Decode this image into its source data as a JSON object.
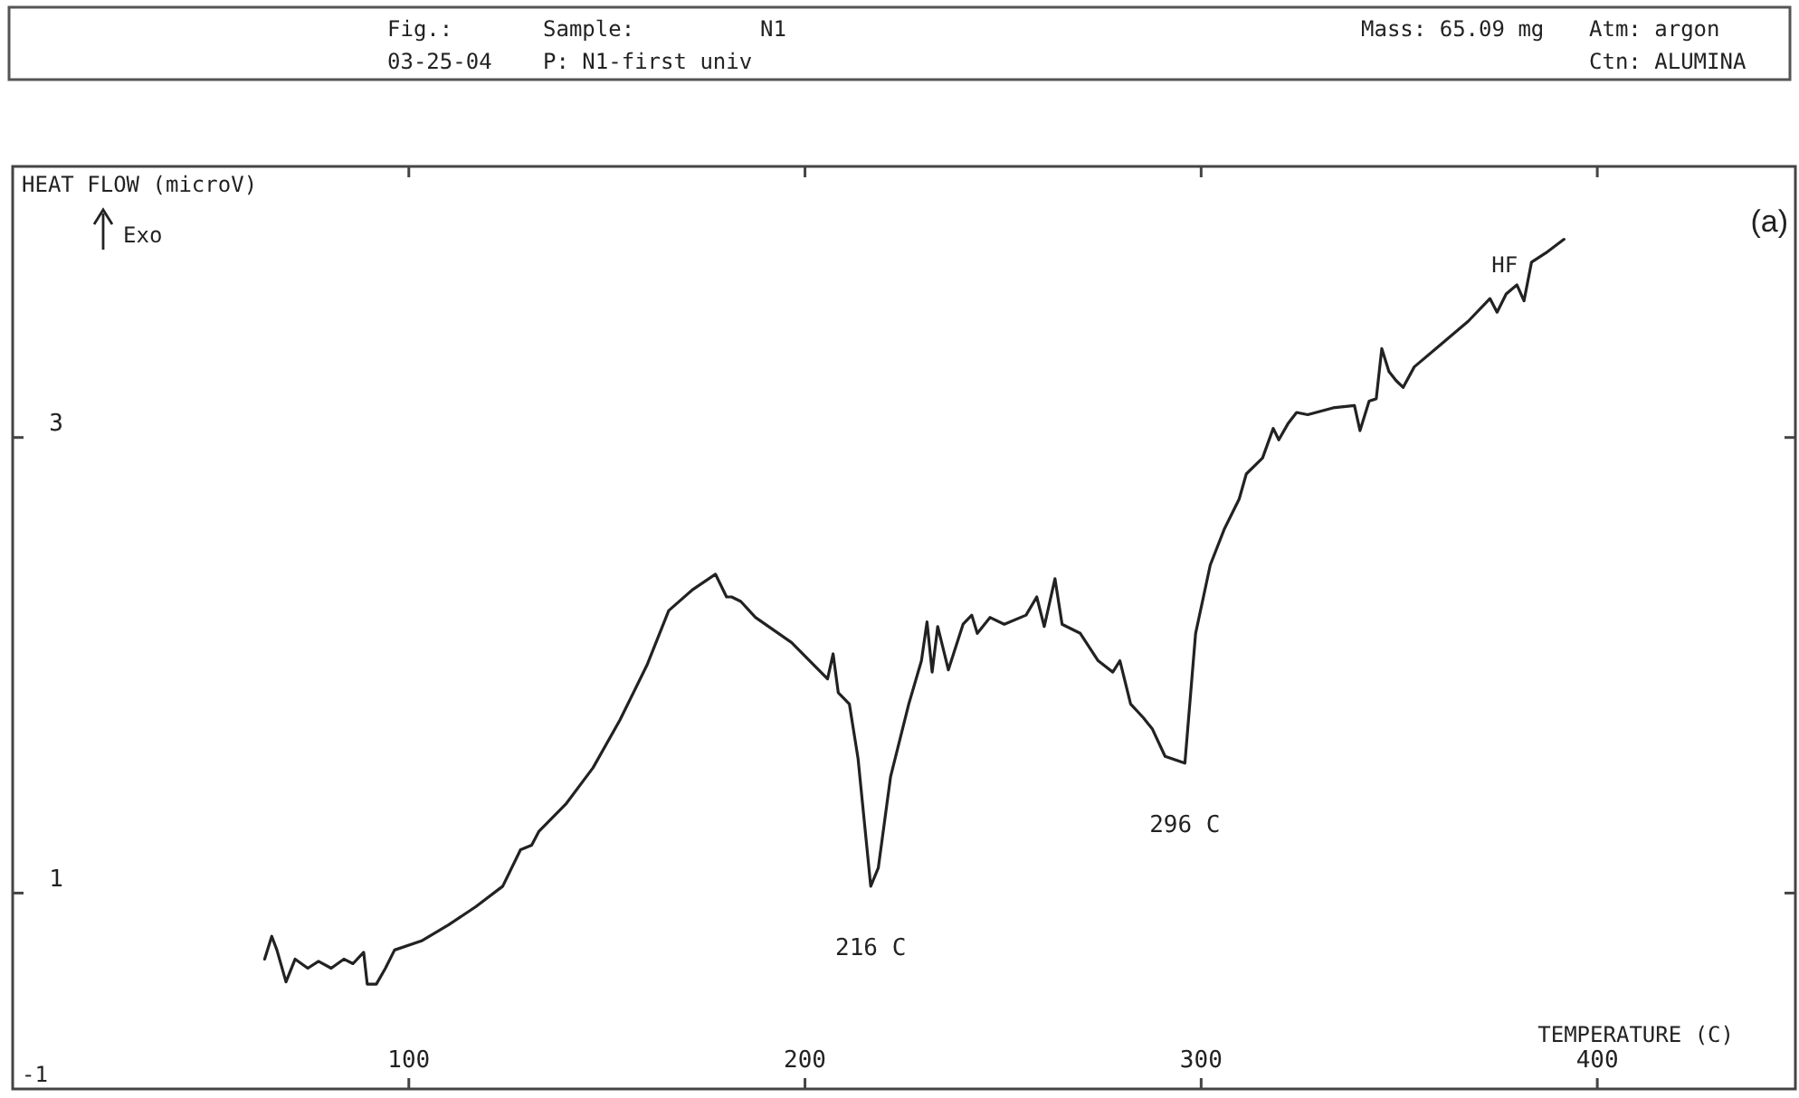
{
  "chart_data": {
    "type": "line",
    "ylabel": "HEAT FLOW (microV)",
    "xlabel": "TEMPERATURE (C)",
    "xlim": [
      0,
      450
    ],
    "xticks": [
      100,
      200,
      300,
      400
    ],
    "ylim": [
      0.14,
      4.19
    ],
    "yticks": [
      1,
      3
    ],
    "grid": false,
    "legend": false,
    "marker": "none",
    "line_style": "solid",
    "annotations": [
      "Fig.:",
      "03-25-04",
      "Sample:",
      "N1",
      "P: N1-first univ",
      "Mass: 65.09 mg",
      "Atm: argon",
      "Ctn: ALUMINA",
      "Exo",
      "(a)",
      "-1",
      {
        "text": "216 C",
        "x": 216.6,
        "y": 1.03
      },
      {
        "text": "296 C",
        "x": 295.9,
        "y": 1.57
      }
    ],
    "series": [
      {
        "name": "HF",
        "color": "#222222",
        "x": [
          63.6,
          65.4,
          66.7,
          69.0,
          71.3,
          74.5,
          77.2,
          80.4,
          83.6,
          85.9,
          88.6,
          89.5,
          91.8,
          94.1,
          96.4,
          103.2,
          110.0,
          116.9,
          123.7,
          128.2,
          131.0,
          132.8,
          139.6,
          146.5,
          153.3,
          160.1,
          165.6,
          171.5,
          177.4,
          180.2,
          181.5,
          183.8,
          187.5,
          196.6,
          205.7,
          207.1,
          208.4,
          211.2,
          213.4,
          216.6,
          218.5,
          221.6,
          226.2,
          229.4,
          230.8,
          232.1,
          233.5,
          236.2,
          239.9,
          242.1,
          243.5,
          246.7,
          250.3,
          255.8,
          258.5,
          260.4,
          263.1,
          264.9,
          269.5,
          274.0,
          277.7,
          279.5,
          282.2,
          285.4,
          287.7,
          290.9,
          295.9,
          298.6,
          302.3,
          305.9,
          309.6,
          311.4,
          315.5,
          318.2,
          319.6,
          321.9,
          324.1,
          326.9,
          333.3,
          338.7,
          340.1,
          342.4,
          344.2,
          345.6,
          347.4,
          349.2,
          351.0,
          353.8,
          360.6,
          367.4,
          372.9,
          374.7,
          377.0,
          379.7,
          381.5,
          383.4,
          387.0,
          391.6
        ],
        "values": [
          0.71,
          0.81,
          0.75,
          0.61,
          0.71,
          0.67,
          0.7,
          0.67,
          0.71,
          0.69,
          0.74,
          0.6,
          0.6,
          0.67,
          0.75,
          0.79,
          0.86,
          0.94,
          1.03,
          1.19,
          1.21,
          1.27,
          1.39,
          1.55,
          1.76,
          2.0,
          2.24,
          2.33,
          2.4,
          2.3,
          2.3,
          2.28,
          2.21,
          2.1,
          1.94,
          2.05,
          1.88,
          1.83,
          1.59,
          1.03,
          1.11,
          1.51,
          1.83,
          2.02,
          2.19,
          1.97,
          2.17,
          1.98,
          2.18,
          2.22,
          2.14,
          2.21,
          2.18,
          2.22,
          2.3,
          2.17,
          2.38,
          2.18,
          2.14,
          2.02,
          1.97,
          2.02,
          1.83,
          1.77,
          1.72,
          1.6,
          1.57,
          2.14,
          2.44,
          2.6,
          2.73,
          2.84,
          2.91,
          3.04,
          2.99,
          3.06,
          3.11,
          3.1,
          3.13,
          3.14,
          3.03,
          3.16,
          3.17,
          3.39,
          3.29,
          3.25,
          3.22,
          3.31,
          3.41,
          3.51,
          3.61,
          3.55,
          3.63,
          3.67,
          3.6,
          3.77,
          3.81,
          3.87
        ]
      }
    ]
  }
}
